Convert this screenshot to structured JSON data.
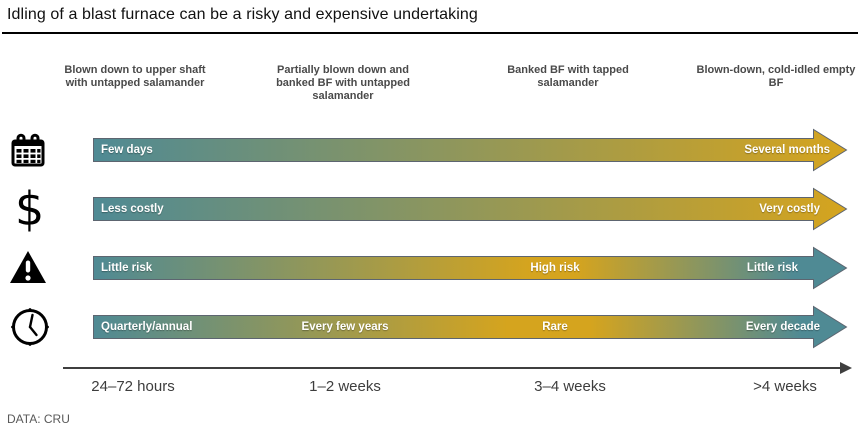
{
  "title": "Idling of a blast furnace can be a risky and expensive undertaking",
  "footer": "DATA: CRU",
  "colors": {
    "teal": "#4F8A94",
    "gold": "#D5A41E",
    "arrow_outline": "#5d6570",
    "axis": "#3f3f3f"
  },
  "columns": [
    "Blown down to upper shaft with untapped salamander",
    "Partially blown down and banked BF with untapped salamander",
    "Banked BF with tapped salamander",
    "Blown-down, cold-idled empty BF"
  ],
  "axis_labels": [
    "24–72 hours",
    "1–2 weeks",
    "3–4 weeks",
    ">4 weeks"
  ],
  "rows": [
    {
      "icon": "calendar-icon",
      "gradient": [
        [
          0,
          "#4F8A94"
        ],
        [
          100,
          "#D5A41E"
        ]
      ],
      "labels": [
        {
          "text": "Few days",
          "anchor": "left",
          "offset": 8
        },
        {
          "text": "Several months",
          "anchor": "right",
          "offset": 18
        }
      ]
    },
    {
      "icon": "dollar-icon",
      "gradient": [
        [
          0,
          "#4F8A94"
        ],
        [
          100,
          "#D5A41E"
        ]
      ],
      "labels": [
        {
          "text": "Less costly",
          "anchor": "left",
          "offset": 8
        },
        {
          "text": "Very costly",
          "anchor": "right",
          "offset": 28
        }
      ]
    },
    {
      "icon": "warning-icon",
      "gradient": [
        [
          0,
          "#4F8A94"
        ],
        [
          58,
          "#D5A41E"
        ],
        [
          64,
          "#D5A41E"
        ],
        [
          93,
          "#4F8A94"
        ],
        [
          100,
          "#4F8A94"
        ]
      ],
      "labels": [
        {
          "text": "Little risk",
          "anchor": "left",
          "offset": 8
        },
        {
          "text": "High risk",
          "anchor": "center",
          "offset": 462
        },
        {
          "text": "Little risk",
          "anchor": "right",
          "offset": 50
        }
      ]
    },
    {
      "icon": "clock-icon",
      "gradient": [
        [
          0,
          "#4F8A94"
        ],
        [
          55,
          "#D5A41E"
        ],
        [
          66,
          "#D5A41E"
        ],
        [
          94,
          "#4F8A94"
        ],
        [
          100,
          "#4F8A94"
        ]
      ],
      "labels": [
        {
          "text": "Quarterly/annual",
          "anchor": "left",
          "offset": 8
        },
        {
          "text": "Every few years",
          "anchor": "center",
          "offset": 252
        },
        {
          "text": "Rare",
          "anchor": "center",
          "offset": 462
        },
        {
          "text": "Every decade",
          "anchor": "right",
          "offset": 28
        }
      ]
    }
  ]
}
